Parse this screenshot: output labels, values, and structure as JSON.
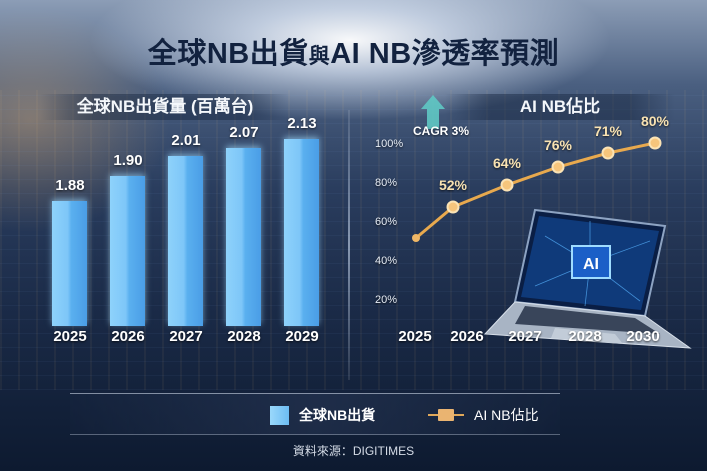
{
  "title": {
    "part1": "全球NB出貨",
    "connector": "與",
    "part2": "AI NB滲透率預測"
  },
  "left_panel": {
    "header": "全球NB出貨量 (百萬台)"
  },
  "right_panel": {
    "header": "AI NB佔比",
    "cagr_label": "CAGR 3%",
    "y_ticks": [
      "100%",
      "80%",
      "60%",
      "40%",
      "20%"
    ],
    "laptop_screen_text": "AI"
  },
  "legend": {
    "bar_label": "全球NB出貨",
    "line_label": "AI NB佔比"
  },
  "source": "資料來源：DIGITIMES",
  "colors": {
    "bar": "#7ec6f8",
    "line": "#e8a94e",
    "title": "#12223f",
    "cagr_arrow": "#5fc8c4"
  },
  "chart_data": [
    {
      "type": "bar",
      "title": "全球NB出貨量 (百萬台)",
      "categories": [
        "2025",
        "2026",
        "2027",
        "2028",
        "2029"
      ],
      "values": [
        1.88,
        1.9,
        2.01,
        2.07,
        2.13
      ],
      "value_labels": [
        "1.88",
        "1.90",
        "2.01",
        "2.07",
        "2.13"
      ],
      "xlabel": "",
      "ylabel": "百萬台",
      "grid": false
    },
    {
      "type": "line",
      "title": "AI NB佔比",
      "categories": [
        "2025",
        "2026",
        "2027",
        "2028",
        "2030"
      ],
      "x_axis_labels": [
        "2025",
        "2026",
        "2027",
        "2028",
        "2030"
      ],
      "values": [
        52,
        64,
        76,
        71,
        80
      ],
      "value_labels": [
        "52%",
        "64%",
        "76%",
        "71%",
        "80%"
      ],
      "y_ticks": [
        "20%",
        "40%",
        "60%",
        "80%",
        "100%"
      ],
      "ylim": [
        20,
        100
      ],
      "annotation": "CAGR 3%",
      "grid": false,
      "note": "Line begins with an unlabeled start point near ~55% before the 52% marker"
    }
  ]
}
